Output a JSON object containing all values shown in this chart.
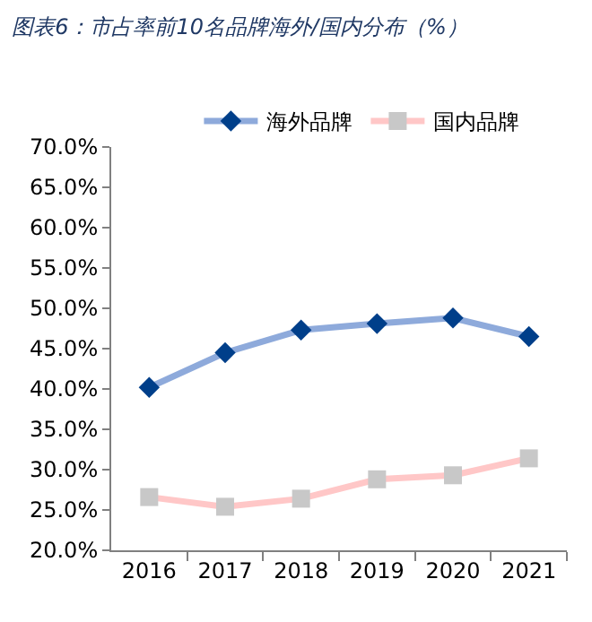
{
  "chart_data": {
    "type": "line",
    "title": "图表6：市占率前10名品牌海外/国内分布（%）",
    "categories": [
      "2016",
      "2017",
      "2018",
      "2019",
      "2020",
      "2021"
    ],
    "series": [
      {
        "name": "海外品牌",
        "color": "#8eaadb",
        "marker": "diamond",
        "colors": [
          "#003f8a",
          "#003f8a",
          "#003f8a",
          "#003f8a",
          "#003f8a",
          "#003f8a"
        ],
        "values": [
          40.2,
          44.5,
          47.3,
          48.1,
          48.8,
          46.5
        ]
      },
      {
        "name": "国内品牌",
        "color": "#ffc7c7",
        "marker": "square",
        "colors": [
          "#c8c8c8",
          "#c8c8c8",
          "#c8c8c8",
          "#c8c8c8",
          "#c8c8c8",
          "#c8c8c8"
        ],
        "values": [
          26.6,
          25.4,
          26.4,
          28.8,
          29.3,
          31.4
        ]
      }
    ],
    "ylim": [
      20,
      70
    ],
    "yticks": [
      {
        "value": 20,
        "label": "20.0%"
      },
      {
        "value": 25,
        "label": "25.0%"
      },
      {
        "value": 30,
        "label": "30.0%"
      },
      {
        "value": 35,
        "label": "35.0%"
      },
      {
        "value": 40,
        "label": "40.0%"
      },
      {
        "value": 45,
        "label": "45.0%"
      },
      {
        "value": 50,
        "label": "50.0%"
      },
      {
        "value": 55,
        "label": "55.0%"
      },
      {
        "value": 60,
        "label": "60.0%"
      },
      {
        "value": 65,
        "label": "65.0%"
      },
      {
        "value": 70,
        "label": "70.0%"
      }
    ],
    "legend": "top",
    "line_style": "solid"
  }
}
